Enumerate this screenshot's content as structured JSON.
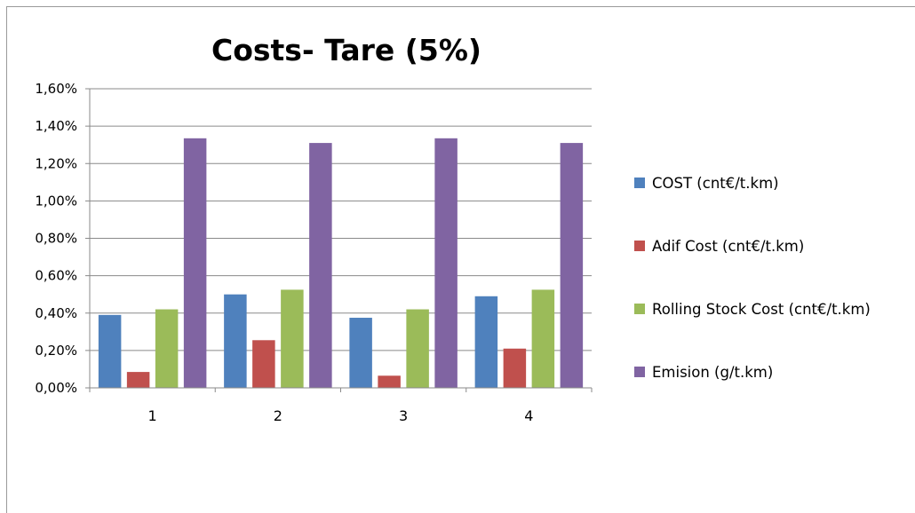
{
  "chart_data": {
    "type": "bar",
    "title": "Costs- Tare (5%)",
    "categories": [
      "1",
      "2",
      "3",
      "4"
    ],
    "series": [
      {
        "name": "COST (cnt€/t.km)",
        "color": "#4F81BD",
        "values": [
          0.39,
          0.5,
          0.375,
          0.49
        ]
      },
      {
        "name": "Adif Cost (cnt€/t.km)",
        "color": "#C0504D",
        "values": [
          0.085,
          0.255,
          0.065,
          0.21
        ]
      },
      {
        "name": "Rolling Stock Cost (cnt€/t.km)",
        "color": "#9BBB59",
        "values": [
          0.42,
          0.525,
          0.42,
          0.525
        ]
      },
      {
        "name": "Emision (g/t.km)",
        "color": "#8064A2",
        "values": [
          1.335,
          1.31,
          1.335,
          1.31
        ]
      }
    ],
    "yticks": [
      "0,00%",
      "0,20%",
      "0,40%",
      "0,60%",
      "0,80%",
      "1,00%",
      "1,20%",
      "1,40%",
      "1,60%"
    ],
    "ylim": [
      0,
      1.6
    ],
    "grid": true,
    "legend": "right"
  }
}
